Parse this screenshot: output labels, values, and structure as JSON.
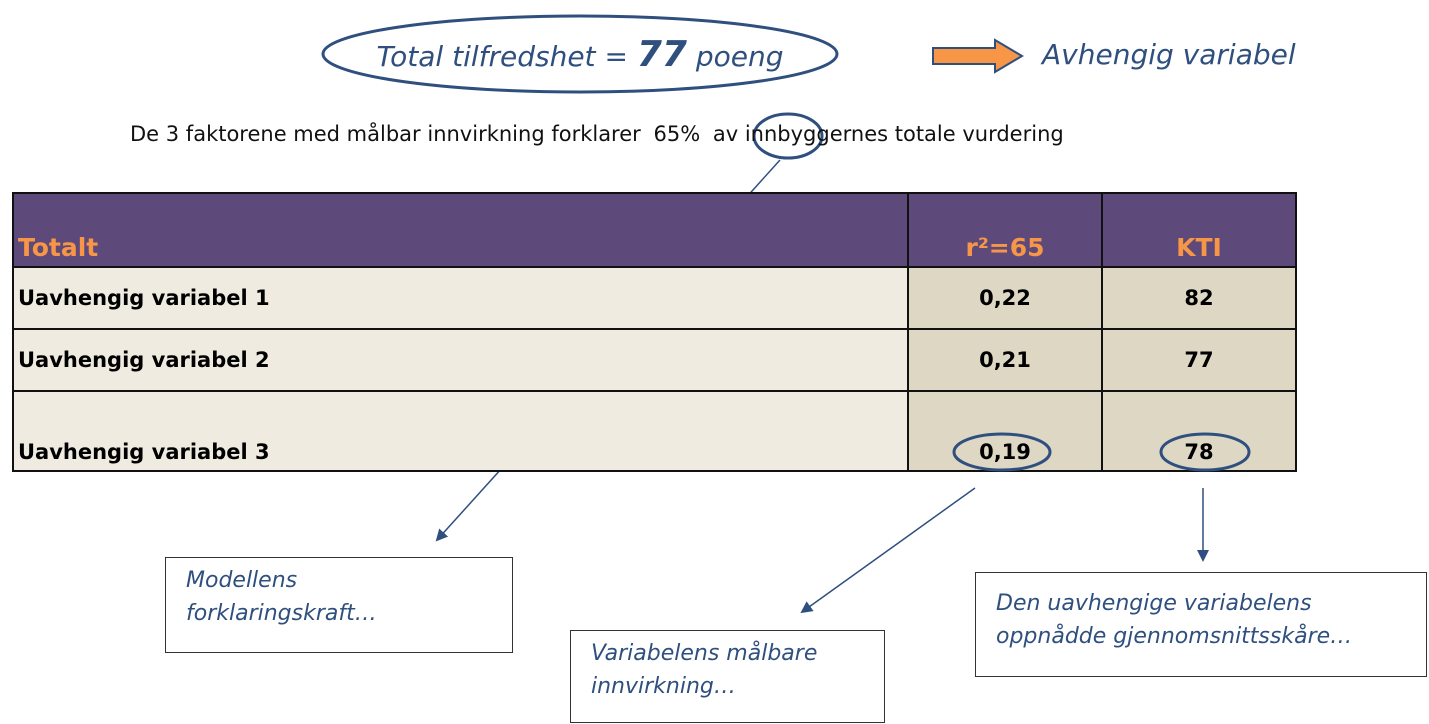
{
  "header": {
    "prefix": "Total tilfredshet =",
    "score": "77",
    "suffix": "poeng",
    "dependent": "Avhengig variabel"
  },
  "subtitle": {
    "before": "De 3 faktorene med målbar innvirkning forklarer",
    "highlight": "65%",
    "after": "av innbyggernes totale vurdering"
  },
  "table": {
    "header": [
      "Totalt",
      "r²=65",
      "KTI"
    ],
    "rows": [
      [
        "Uavhengig variabel 1",
        "0,22",
        "82"
      ],
      [
        "Uavhengig variabel 2",
        "0,21",
        "77"
      ],
      [
        "Uavhengig variabel 3",
        "0,19",
        "78"
      ]
    ]
  },
  "callouts": [
    {
      "lines": [
        "Modellens",
        "forklaringskraft…"
      ]
    },
    {
      "lines": [
        "Variabelens målbare",
        "innvirkning…"
      ]
    },
    {
      "lines": [
        "Den uavhengige variabelens",
        "oppnådde gjennomsnittsskåre…"
      ]
    }
  ]
}
